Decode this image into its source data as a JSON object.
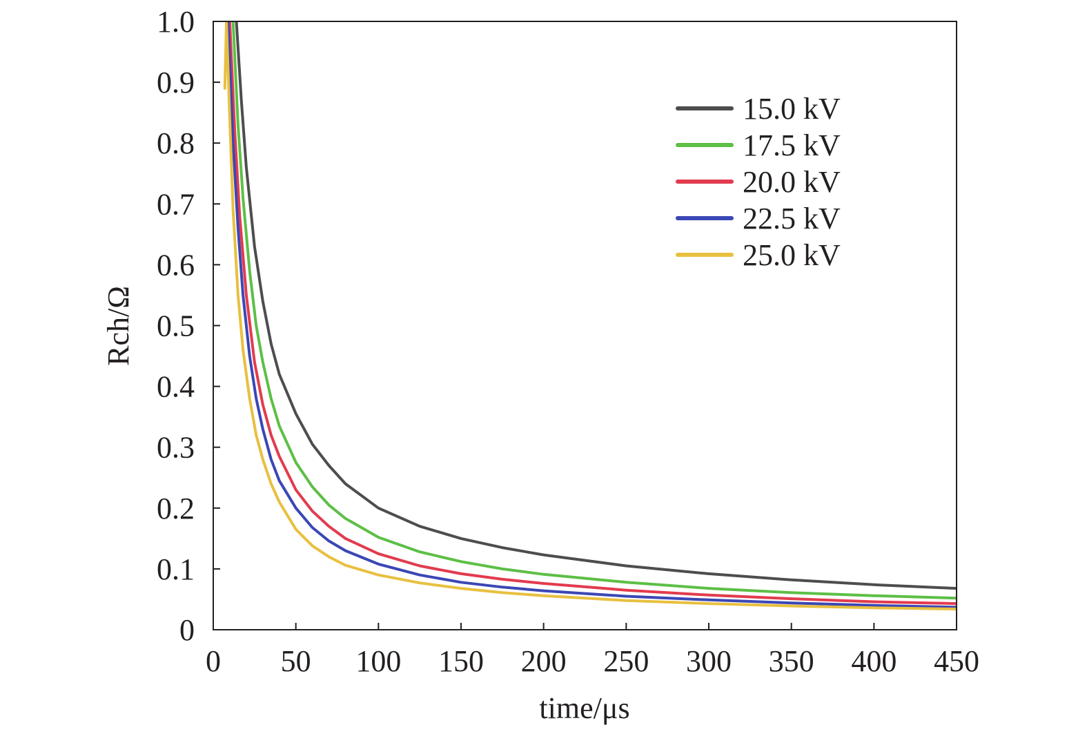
{
  "chart_data": {
    "type": "line",
    "title": "",
    "xlabel": "time/μs",
    "ylabel": "Rch/Ω",
    "xlim": [
      0,
      450
    ],
    "ylim": [
      0,
      1.0
    ],
    "xticks": [
      "0",
      "50",
      "100",
      "150",
      "200",
      "250",
      "300",
      "350",
      "400",
      "450"
    ],
    "yticks": [
      "0",
      "0.1",
      "0.2",
      "0.3",
      "0.4",
      "0.5",
      "0.6",
      "0.7",
      "0.8",
      "0.9",
      "1.0"
    ],
    "grid": false,
    "legend_position": "top-right",
    "series": [
      {
        "name": "15.0 kV",
        "color": "#4d4d4f",
        "x": [
          14,
          17,
          20,
          25,
          30,
          35,
          40,
          50,
          60,
          70,
          80,
          100,
          125,
          150,
          175,
          200,
          250,
          300,
          350,
          400,
          450
        ],
        "y": [
          1.0,
          0.87,
          0.76,
          0.63,
          0.54,
          0.47,
          0.42,
          0.355,
          0.305,
          0.27,
          0.24,
          0.2,
          0.17,
          0.15,
          0.135,
          0.123,
          0.105,
          0.092,
          0.082,
          0.074,
          0.068
        ]
      },
      {
        "name": "17.5 kV",
        "color": "#5dbf46",
        "x": [
          12,
          15,
          18,
          22,
          26,
          30,
          35,
          40,
          50,
          60,
          70,
          80,
          100,
          125,
          150,
          175,
          200,
          250,
          300,
          350,
          400,
          450
        ],
        "y": [
          1.0,
          0.83,
          0.71,
          0.59,
          0.5,
          0.44,
          0.38,
          0.335,
          0.275,
          0.235,
          0.205,
          0.183,
          0.152,
          0.128,
          0.112,
          0.1,
          0.091,
          0.078,
          0.068,
          0.061,
          0.056,
          0.052
        ]
      },
      {
        "name": "20.0 kV",
        "color": "#e23b4e",
        "x": [
          10,
          13,
          16,
          20,
          25,
          30,
          35,
          40,
          50,
          60,
          70,
          80,
          100,
          125,
          150,
          175,
          200,
          250,
          300,
          350,
          400,
          450
        ],
        "y": [
          1.0,
          0.82,
          0.68,
          0.55,
          0.44,
          0.37,
          0.32,
          0.285,
          0.23,
          0.195,
          0.17,
          0.15,
          0.125,
          0.105,
          0.092,
          0.083,
          0.076,
          0.065,
          0.057,
          0.051,
          0.046,
          0.043
        ]
      },
      {
        "name": "22.5 kV",
        "color": "#3b47b5",
        "x": [
          9,
          12,
          15,
          18,
          22,
          26,
          30,
          35,
          40,
          50,
          60,
          70,
          80,
          100,
          125,
          150,
          175,
          200,
          250,
          300,
          350,
          400,
          450
        ],
        "y": [
          1.0,
          0.8,
          0.66,
          0.55,
          0.45,
          0.38,
          0.33,
          0.28,
          0.245,
          0.2,
          0.168,
          0.146,
          0.13,
          0.108,
          0.09,
          0.078,
          0.07,
          0.064,
          0.055,
          0.049,
          0.044,
          0.04,
          0.037
        ]
      },
      {
        "name": "25.0 kV",
        "color": "#e8c040",
        "x": [
          7,
          8,
          10,
          12,
          15,
          18,
          22,
          26,
          30,
          35,
          40,
          50,
          60,
          70,
          80,
          100,
          125,
          150,
          175,
          200,
          250,
          300,
          350,
          400,
          450
        ],
        "y": [
          0.89,
          1.0,
          0.84,
          0.69,
          0.55,
          0.46,
          0.38,
          0.32,
          0.28,
          0.24,
          0.21,
          0.165,
          0.138,
          0.12,
          0.106,
          0.09,
          0.077,
          0.068,
          0.061,
          0.056,
          0.048,
          0.043,
          0.039,
          0.036,
          0.034
        ]
      }
    ]
  }
}
